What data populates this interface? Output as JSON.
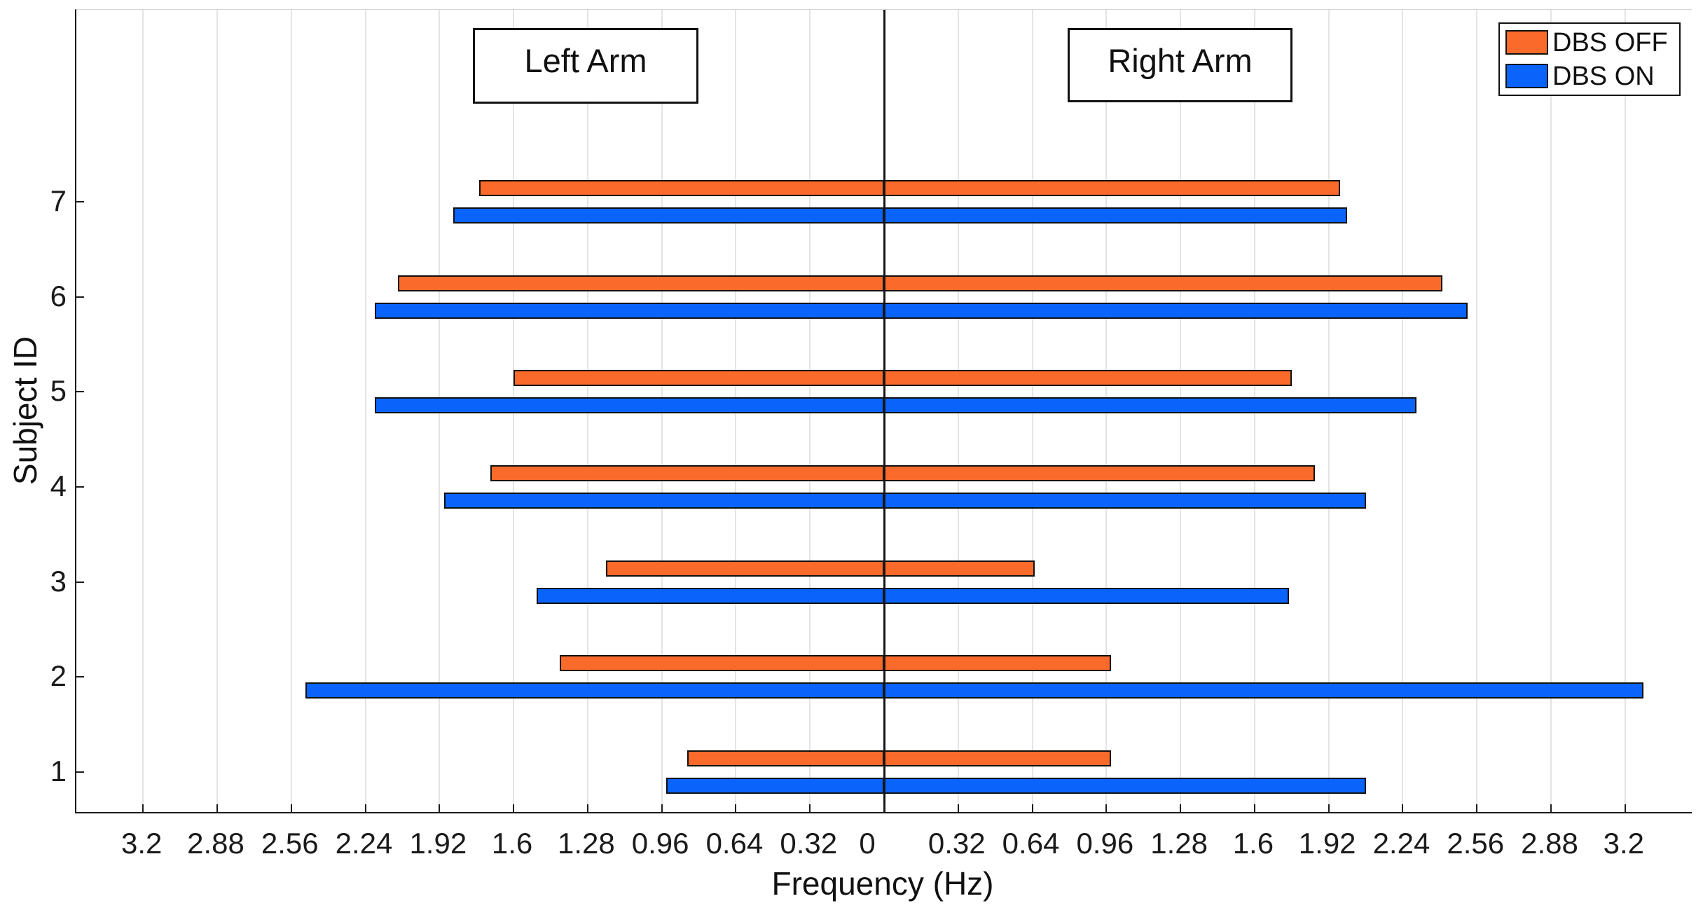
{
  "figure": {
    "xlabel": "Frequency (Hz)",
    "ylabel": "Subject ID",
    "left_panel_label": "Left Arm",
    "right_panel_label": "Right Arm"
  },
  "legend": [
    {
      "label": "DBS OFF",
      "color": "#FA6A2B"
    },
    {
      "label": "DBS ON",
      "color": "#0A64FB"
    }
  ],
  "chart_data": {
    "type": "bar",
    "orientation": "horizontal-bidirectional",
    "title": "",
    "xlabel": "Frequency (Hz)",
    "ylabel": "Subject ID",
    "grid": true,
    "legend_position": "top-right",
    "panel_labels": {
      "left": "Left Arm",
      "right": "Right Arm"
    },
    "xlim_hz": 3.488,
    "x_tick_step": 0.32,
    "x_ticks": [
      {
        "value": -3.2,
        "label": "3.2"
      },
      {
        "value": -2.88,
        "label": "2.88"
      },
      {
        "value": -2.56,
        "label": "2.56"
      },
      {
        "value": -2.24,
        "label": "2.24"
      },
      {
        "value": -1.92,
        "label": "1.92"
      },
      {
        "value": -1.6,
        "label": "1.6"
      },
      {
        "value": -1.28,
        "label": "1.28"
      },
      {
        "value": -0.96,
        "label": "0.96"
      },
      {
        "value": -0.64,
        "label": "0.64"
      },
      {
        "value": -0.32,
        "label": "0.32"
      },
      {
        "value": 0,
        "label": "0"
      },
      {
        "value": 0.32,
        "label": "0.32"
      },
      {
        "value": 0.64,
        "label": "0.64"
      },
      {
        "value": 0.96,
        "label": "0.96"
      },
      {
        "value": 1.28,
        "label": "1.28"
      },
      {
        "value": 1.6,
        "label": "1.6"
      },
      {
        "value": 1.92,
        "label": "1.92"
      },
      {
        "value": 2.24,
        "label": "2.24"
      },
      {
        "value": 2.56,
        "label": "2.56"
      },
      {
        "value": 2.88,
        "label": "2.88"
      },
      {
        "value": 3.2,
        "label": "3.2"
      }
    ],
    "subjects": [
      "1",
      "2",
      "3",
      "4",
      "5",
      "6",
      "7"
    ],
    "series": [
      {
        "name": "DBS OFF",
        "arm": "left",
        "color": "#FA6A2B",
        "values": [
          0.85,
          1.4,
          1.2,
          1.7,
          1.6,
          2.1,
          1.75
        ]
      },
      {
        "name": "DBS ON",
        "arm": "left",
        "color": "#0A64FB",
        "values": [
          0.94,
          2.5,
          1.5,
          1.9,
          2.2,
          2.2,
          1.86
        ]
      },
      {
        "name": "DBS OFF",
        "arm": "right",
        "color": "#FA6A2B",
        "values": [
          0.98,
          0.98,
          0.65,
          1.86,
          1.76,
          2.41,
          1.97
        ]
      },
      {
        "name": "DBS ON",
        "arm": "right",
        "color": "#0A64FB",
        "values": [
          2.08,
          3.28,
          1.75,
          2.08,
          2.3,
          2.52,
          2.0
        ]
      }
    ]
  }
}
